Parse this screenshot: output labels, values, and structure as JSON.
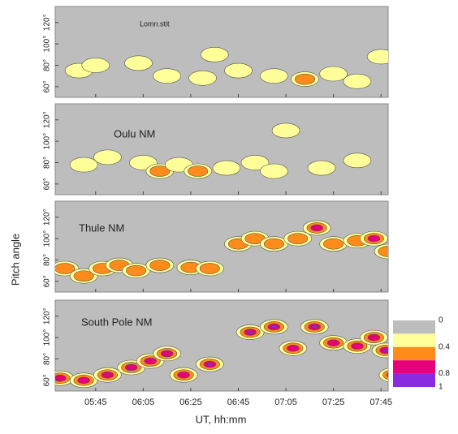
{
  "chart_data": {
    "type": "contour",
    "xlabel": "UT, hh:mm",
    "ylabel": "Pitch angle",
    "xlim": [
      328,
      468
    ],
    "xticks": [
      {
        "value": 345,
        "label": "05:45"
      },
      {
        "value": 365,
        "label": "06:05"
      },
      {
        "value": 385,
        "label": "06:25"
      },
      {
        "value": 405,
        "label": "06:45"
      },
      {
        "value": 425,
        "label": "07:05"
      },
      {
        "value": 445,
        "label": "07:25"
      },
      {
        "value": 465,
        "label": "07:45"
      }
    ],
    "ylim": [
      50,
      135
    ],
    "yticks": [
      {
        "value": 60,
        "label": "60°"
      },
      {
        "value": 80,
        "label": "80°"
      },
      {
        "value": 100,
        "label": "100°"
      },
      {
        "value": 120,
        "label": "120°"
      }
    ],
    "levels": [
      0,
      0.2,
      0.4,
      0.6,
      0.8,
      1
    ],
    "colors": [
      "#bdbdbd",
      "#ffff99",
      "#ff8c1a",
      "#e6007a",
      "#8a2be2"
    ],
    "colorbar_ticks": [
      0,
      0.4,
      0.8,
      1
    ],
    "panels": [
      {
        "title": "Lomn.stit",
        "x": [
          338,
          345,
          363,
          375,
          390,
          395,
          405,
          420,
          433,
          445,
          455,
          465
        ],
        "y": [
          75,
          80,
          82,
          70,
          68,
          90,
          75,
          70,
          67,
          72,
          65,
          88
        ],
        "values": [
          0.3,
          0.3,
          0.3,
          0.3,
          0.3,
          0.3,
          0.3,
          0.3,
          0.5,
          0.3,
          0.3,
          0.3
        ]
      },
      {
        "title": "Oulu NM",
        "x": [
          340,
          350,
          365,
          372,
          380,
          388,
          400,
          412,
          420,
          425,
          440,
          455
        ],
        "y": [
          78,
          85,
          80,
          72,
          78,
          72,
          75,
          80,
          72,
          110,
          75,
          82
        ],
        "values": [
          0.3,
          0.3,
          0.3,
          0.5,
          0.3,
          0.5,
          0.3,
          0.3,
          0.3,
          0.3,
          0.3,
          0.3
        ]
      },
      {
        "title": "Thule NM",
        "x": [
          332,
          340,
          348,
          355,
          362,
          372,
          385,
          393,
          405,
          412,
          420,
          430,
          438,
          445,
          455,
          462,
          468
        ],
        "y": [
          72,
          65,
          72,
          75,
          70,
          75,
          73,
          72,
          95,
          100,
          95,
          100,
          110,
          95,
          98,
          100,
          88
        ],
        "values": [
          0.5,
          0.5,
          0.5,
          0.5,
          0.5,
          0.5,
          0.5,
          0.5,
          0.5,
          0.5,
          0.5,
          0.5,
          0.6,
          0.5,
          0.5,
          0.6,
          0.5
        ]
      },
      {
        "title": "South Pole NM",
        "x": [
          330,
          340,
          350,
          360,
          368,
          375,
          382,
          393,
          410,
          420,
          428,
          437,
          445,
          455,
          462,
          467,
          470
        ],
        "y": [
          62,
          60,
          65,
          72,
          78,
          85,
          65,
          75,
          105,
          110,
          90,
          110,
          95,
          92,
          100,
          88,
          65
        ],
        "values": [
          0.7,
          0.7,
          0.7,
          0.7,
          0.7,
          0.7,
          0.7,
          0.9,
          0.9,
          0.9,
          0.7,
          0.9,
          0.7,
          0.7,
          0.7,
          0.9,
          0.7
        ]
      }
    ]
  }
}
